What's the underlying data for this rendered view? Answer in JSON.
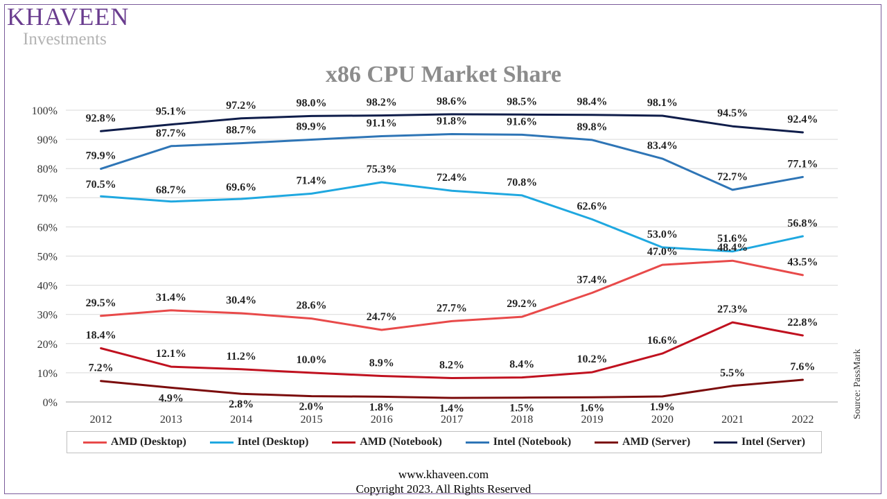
{
  "brand": {
    "name": "Khaveen",
    "name_display": "KHAVEEN",
    "sub": "Investments"
  },
  "source": "Source: PassMark",
  "footer": {
    "website": "www.khaveen.com",
    "copyright": "Copyright 2023.  All Rights Reserved"
  },
  "chart_data": {
    "type": "line",
    "title": "x86 CPU Market Share",
    "xlabel": "",
    "ylabel": "",
    "ylim": [
      0,
      100
    ],
    "y_ticks": [
      0,
      10,
      20,
      30,
      40,
      50,
      60,
      70,
      80,
      90,
      100
    ],
    "y_tick_labels": [
      "0%",
      "10%",
      "20%",
      "30%",
      "40%",
      "50%",
      "60%",
      "70%",
      "80%",
      "90%",
      "100%"
    ],
    "categories": [
      "2012",
      "2013",
      "2014",
      "2015",
      "2016",
      "2017",
      "2018",
      "2019",
      "2020",
      "2021",
      "2022"
    ],
    "grid": true,
    "legend_position": "bottom",
    "series": [
      {
        "name": "AMD (Desktop)",
        "color": "#e84a4a",
        "values": [
          29.5,
          31.4,
          30.4,
          28.6,
          24.7,
          27.7,
          29.2,
          37.4,
          47.0,
          48.4,
          43.5
        ],
        "labels": [
          "29.5%",
          "31.4%",
          "30.4%",
          "28.6%",
          "24.7%",
          "27.7%",
          "29.2%",
          "37.4%",
          "47.0%",
          "48.4%",
          "43.5%"
        ]
      },
      {
        "name": "Intel (Desktop)",
        "color": "#1fa8e0",
        "values": [
          70.5,
          68.7,
          69.6,
          71.4,
          75.3,
          72.4,
          70.8,
          62.6,
          53.0,
          51.6,
          56.8
        ],
        "labels": [
          "70.5%",
          "68.7%",
          "69.6%",
          "71.4%",
          "75.3%",
          "72.4%",
          "70.8%",
          "62.6%",
          "53.0%",
          "51.6%",
          "56.8%"
        ]
      },
      {
        "name": "AMD (Notebook)",
        "color": "#c0111f",
        "values": [
          18.4,
          12.1,
          11.2,
          10.0,
          8.9,
          8.2,
          8.4,
          10.2,
          16.6,
          27.3,
          22.8
        ],
        "labels": [
          "18.4%",
          "12.1%",
          "11.2%",
          "10.0%",
          "8.9%",
          "8.2%",
          "8.4%",
          "10.2%",
          "16.6%",
          "27.3%",
          "22.8%"
        ]
      },
      {
        "name": "Intel (Notebook)",
        "color": "#2e75b6",
        "values": [
          79.9,
          87.7,
          88.7,
          89.9,
          91.1,
          91.8,
          91.6,
          89.8,
          83.4,
          72.7,
          77.1
        ],
        "labels": [
          "79.9%",
          "87.7%",
          "88.7%",
          "89.9%",
          "91.1%",
          "91.8%",
          "91.6%",
          "89.8%",
          "83.4%",
          "72.7%",
          "77.1%"
        ]
      },
      {
        "name": "AMD (Server)",
        "color": "#7b0c0c",
        "values": [
          7.2,
          4.9,
          2.8,
          2.0,
          1.8,
          1.4,
          1.5,
          1.6,
          1.9,
          5.5,
          7.6
        ],
        "labels": [
          "7.2%",
          "4.9%",
          "2.8%",
          "2.0%",
          "1.8%",
          "1.4%",
          "1.5%",
          "1.6%",
          "1.9%",
          "5.5%",
          "7.6%"
        ]
      },
      {
        "name": "Intel (Server)",
        "color": "#0f1d4a",
        "values": [
          92.8,
          95.1,
          97.2,
          98.0,
          98.2,
          98.6,
          98.5,
          98.4,
          98.1,
          94.5,
          92.4
        ],
        "labels": [
          "92.8%",
          "95.1%",
          "97.2%",
          "98.0%",
          "98.2%",
          "98.6%",
          "98.5%",
          "98.4%",
          "98.1%",
          "94.5%",
          "92.4%"
        ]
      }
    ]
  }
}
